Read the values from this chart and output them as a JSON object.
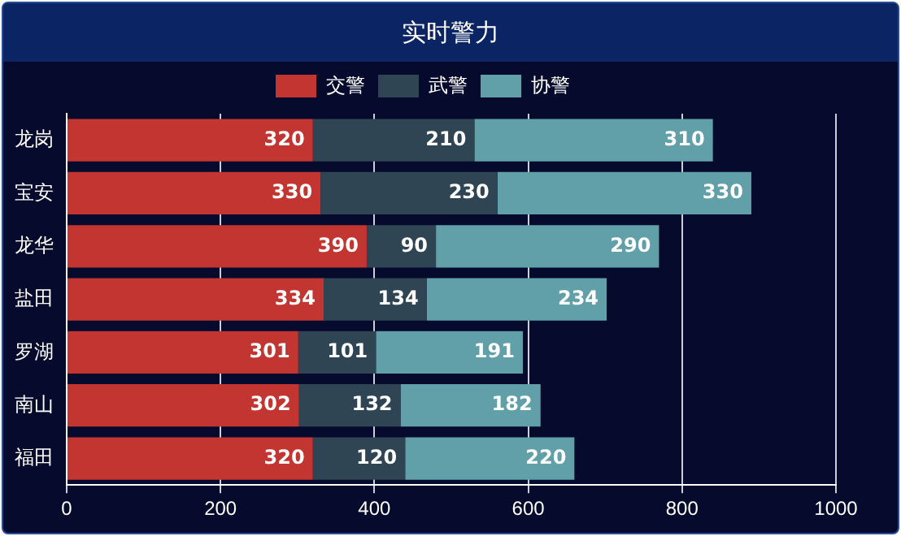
{
  "chart_data": {
    "type": "bar",
    "orientation": "horizontal",
    "stacked": true,
    "title": "实时警力",
    "categories": [
      "龙岗",
      "宝安",
      "龙华",
      "盐田",
      "罗湖",
      "南山",
      "福田"
    ],
    "series": [
      {
        "name": "交警",
        "color": "#c23531",
        "values": [
          320,
          330,
          390,
          334,
          301,
          302,
          320
        ]
      },
      {
        "name": "武警",
        "color": "#2f4554",
        "values": [
          210,
          230,
          90,
          134,
          101,
          132,
          120
        ]
      },
      {
        "name": "协警",
        "color": "#61a0a8",
        "values": [
          310,
          330,
          290,
          234,
          191,
          182,
          220
        ]
      }
    ],
    "xlim": [
      0,
      1000
    ],
    "xticks": [
      0,
      200,
      400,
      600,
      800,
      1000
    ],
    "grid": "x",
    "legend": "top",
    "data_labels": true
  }
}
